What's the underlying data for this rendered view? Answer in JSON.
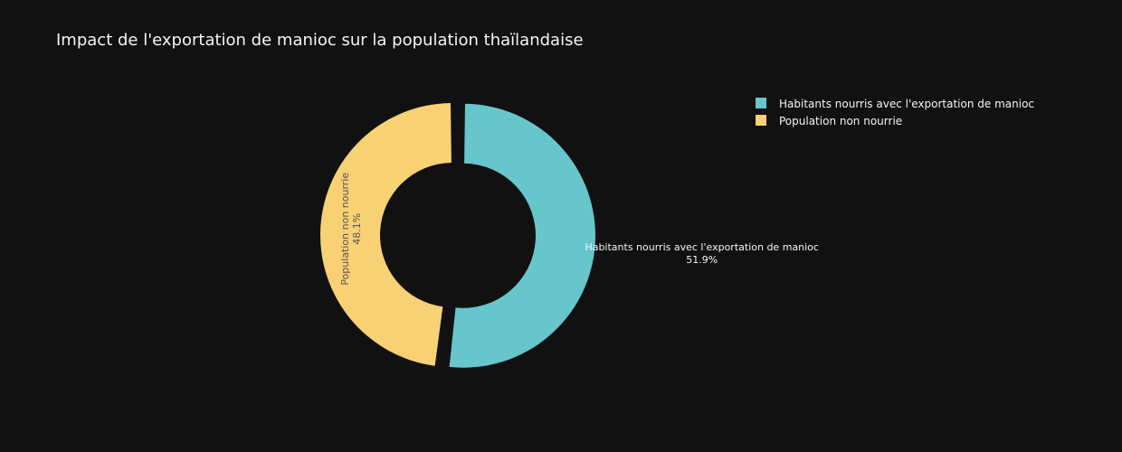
{
  "chart_data": {
    "type": "pie",
    "hole": true,
    "title": "Impact de l'exportation de manioc sur la population thaïlandaise",
    "slices": [
      {
        "label": "Habitants nourris avec l'exportation de manioc",
        "percent_text": "51.9%",
        "value": 51.9,
        "color": "#67C5CC",
        "pulled": true,
        "label_position": "outside"
      },
      {
        "label": "Population non nourrie",
        "percent_text": "48.1%",
        "value": 48.1,
        "color": "#F7D173",
        "pulled": false,
        "label_position": "inside"
      }
    ],
    "legend_position": "top-right",
    "background": "#111111"
  }
}
